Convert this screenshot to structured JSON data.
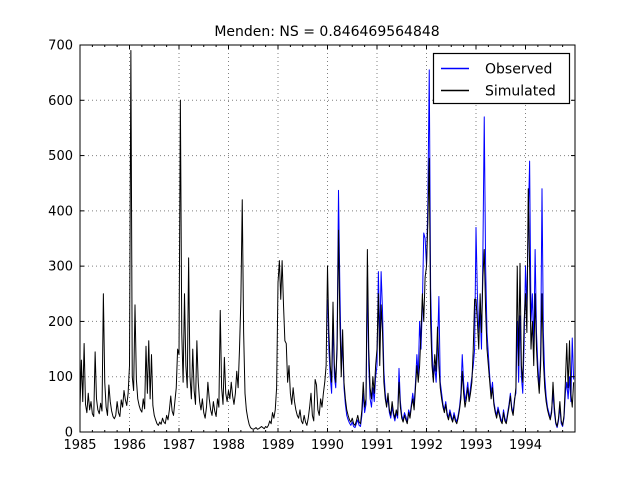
{
  "title": "Menden: NS = 0.846469564848",
  "chart_data": {
    "type": "line",
    "title": "Menden: NS = 0.846469564848",
    "xlabel": "",
    "ylabel": "",
    "xlim": [
      1985,
      1995
    ],
    "ylim": [
      0,
      700
    ],
    "x_tick_labels": [
      "1985",
      "1986",
      "1987",
      "1988",
      "1989",
      "1990",
      "1991",
      "1992",
      "1993",
      "1994"
    ],
    "y_tick_labels": [
      "0",
      "100",
      "200",
      "300",
      "400",
      "500",
      "600",
      "700"
    ],
    "x_minor_tick_interval_years": 0.25,
    "grid": "dotted",
    "grid_color": "#808080",
    "legend_position": "upper right",
    "samples_per_year": 36,
    "series": [
      {
        "name": "Observed",
        "color": "#0000ff",
        "start_year": 1990,
        "values": [
          240,
          150,
          100,
          70,
          200,
          100,
          80,
          170,
          437,
          260,
          120,
          160,
          80,
          50,
          30,
          22,
          16,
          12,
          18,
          10,
          8,
          15,
          22,
          12,
          10,
          30,
          70,
          35,
          50,
          280,
          120,
          60,
          45,
          80,
          55,
          100,
          120,
          290,
          160,
          290,
          220,
          110,
          70,
          50,
          60,
          35,
          25,
          45,
          30,
          20,
          35,
          25,
          115,
          55,
          30,
          22,
          35,
          28,
          18,
          40,
          30,
          50,
          70,
          50,
          90,
          140,
          100,
          200,
          150,
          230,
          360,
          350,
          300,
          420,
          655,
          260,
          150,
          100,
          120,
          90,
          150,
          245,
          90,
          70,
          50,
          40,
          55,
          35,
          25,
          40,
          30,
          20,
          35,
          25,
          18,
          30,
          45,
          70,
          140,
          90,
          55,
          70,
          90,
          60,
          80,
          100,
          120,
          150,
          370,
          250,
          180,
          220,
          150,
          320,
          570,
          300,
          180,
          140,
          100,
          70,
          90,
          55,
          40,
          30,
          45,
          35,
          25,
          18,
          40,
          25,
          18,
          35,
          50,
          70,
          45,
          35,
          60,
          70,
          200,
          90,
          210,
          100,
          70,
          160,
          300,
          220,
          380,
          490,
          200,
          250,
          150,
          330,
          180,
          120,
          80,
          140,
          440,
          180,
          100,
          65,
          45,
          35,
          25,
          40,
          70,
          35,
          15,
          8,
          20,
          45,
          15,
          10,
          25,
          70,
          90,
          60,
          100,
          55,
          170,
          95
        ]
      },
      {
        "name": "Simulated",
        "color": "#000000",
        "start_year": 1985,
        "values": [
          45,
          130,
          55,
          160,
          50,
          35,
          70,
          40,
          55,
          33,
          28,
          145,
          60,
          40,
          33,
          52,
          38,
          250,
          90,
          45,
          30,
          85,
          55,
          38,
          28,
          24,
          30,
          55,
          35,
          28,
          58,
          45,
          75,
          58,
          48,
          70,
          120,
          690,
          100,
          75,
          230,
          95,
          60,
          48,
          40,
          36,
          60,
          42,
          155,
          70,
          165,
          60,
          140,
          48,
          30,
          22,
          15,
          12,
          18,
          14,
          25,
          18,
          15,
          30,
          22,
          40,
          65,
          38,
          30,
          55,
          80,
          150,
          140,
          600,
          180,
          90,
          250,
          120,
          80,
          315,
          100,
          60,
          150,
          75,
          50,
          165,
          90,
          55,
          40,
          60,
          35,
          25,
          45,
          90,
          60,
          40,
          30,
          55,
          38,
          28,
          60,
          45,
          220,
          80,
          50,
          135,
          70,
          55,
          75,
          60,
          90,
          65,
          50,
          70,
          110,
          80,
          150,
          240,
          420,
          180,
          70,
          40,
          25,
          14,
          8,
          6,
          5,
          6,
          8,
          5,
          6,
          8,
          10,
          8,
          6,
          10,
          8,
          12,
          20,
          15,
          35,
          25,
          40,
          80,
          270,
          310,
          240,
          310,
          230,
          165,
          160,
          90,
          120,
          70,
          50,
          80,
          55,
          40,
          30,
          25,
          40,
          20,
          15,
          30,
          18,
          12,
          25,
          45,
          70,
          30,
          20,
          95,
          85,
          40,
          30,
          60,
          45,
          70,
          90,
          120,
          300,
          180,
          120,
          90,
          235,
          120,
          90,
          150,
          365,
          200,
          100,
          185,
          90,
          60,
          40,
          30,
          22,
          18,
          25,
          15,
          12,
          20,
          30,
          18,
          15,
          40,
          90,
          45,
          60,
          330,
          150,
          80,
          60,
          100,
          70,
          120,
          150,
          250,
          120,
          230,
          180,
          90,
          60,
          45,
          70,
          40,
          30,
          55,
          35,
          25,
          40,
          30,
          90,
          45,
          25,
          18,
          30,
          22,
          15,
          35,
          25,
          45,
          60,
          40,
          80,
          120,
          90,
          120,
          180,
          250,
          200,
          280,
          300,
          380,
          495,
          200,
          120,
          90,
          140,
          110,
          190,
          120,
          80,
          60,
          45,
          35,
          50,
          30,
          22,
          35,
          25,
          18,
          30,
          20,
          15,
          25,
          40,
          60,
          110,
          70,
          45,
          60,
          80,
          55,
          70,
          90,
          150,
          240,
          240,
          200,
          150,
          250,
          180,
          280,
          330,
          220,
          150,
          120,
          90,
          60,
          80,
          50,
          35,
          25,
          40,
          30,
          20,
          15,
          35,
          20,
          15,
          30,
          45,
          65,
          40,
          30,
          55,
          80,
          300,
          120,
          305,
          120,
          90,
          200,
          250,
          180,
          440,
          300,
          150,
          200,
          120,
          250,
          150,
          100,
          70,
          120,
          250,
          130,
          80,
          55,
          40,
          30,
          22,
          35,
          90,
          45,
          18,
          10,
          25,
          55,
          20,
          12,
          30,
          90,
          160,
          80,
          165,
          70,
          45,
          90
        ]
      }
    ]
  }
}
